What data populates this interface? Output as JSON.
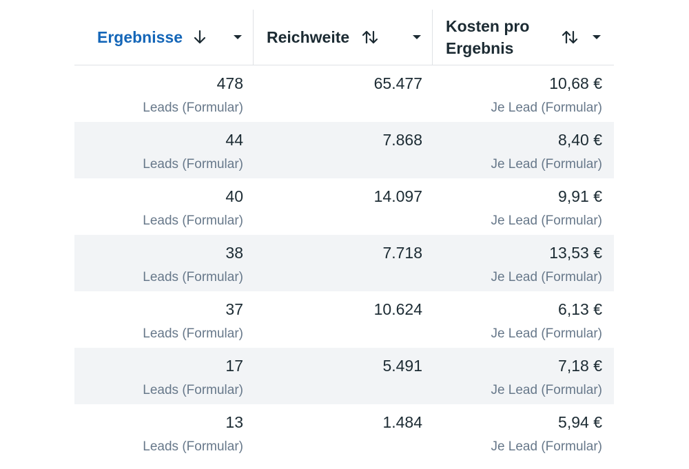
{
  "columns": [
    {
      "title": "Ergebnisse",
      "sort_icon": "arrow-down-icon",
      "dropdown_icon": "caret-down-icon",
      "active": true,
      "accent": "#1466b8"
    },
    {
      "title": "Reichweite",
      "sort_icon": "sort-up-down-icon",
      "dropdown_icon": "caret-down-icon",
      "active": false
    },
    {
      "title": "Kosten pro\nErgebnis",
      "sort_icon": "sort-up-down-icon",
      "dropdown_icon": "caret-down-icon",
      "active": false
    }
  ],
  "rows": [
    {
      "results": "478",
      "results_label": "Leads (Formular)",
      "reach": "65.477",
      "cost": "10,68 €",
      "cost_label": "Je Lead (Formular)"
    },
    {
      "results": "44",
      "results_label": "Leads (Formular)",
      "reach": "7.868",
      "cost": "8,40 €",
      "cost_label": "Je Lead (Formular)"
    },
    {
      "results": "40",
      "results_label": "Leads (Formular)",
      "reach": "14.097",
      "cost": "9,91 €",
      "cost_label": "Je Lead (Formular)"
    },
    {
      "results": "38",
      "results_label": "Leads (Formular)",
      "reach": "7.718",
      "cost": "13,53 €",
      "cost_label": "Je Lead (Formular)"
    },
    {
      "results": "37",
      "results_label": "Leads (Formular)",
      "reach": "10.624",
      "cost": "6,13 €",
      "cost_label": "Je Lead (Formular)"
    },
    {
      "results": "17",
      "results_label": "Leads (Formular)",
      "reach": "5.491",
      "cost": "7,18 €",
      "cost_label": "Je Lead (Formular)"
    },
    {
      "results": "13",
      "results_label": "Leads (Formular)",
      "reach": "1.484",
      "cost": "5,94 €",
      "cost_label": "Je Lead (Formular)"
    }
  ]
}
